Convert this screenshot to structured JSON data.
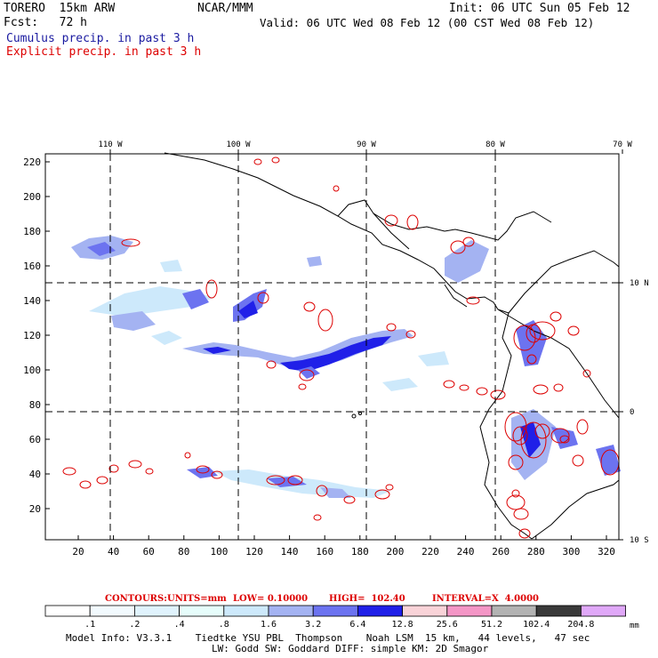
{
  "header": {
    "model": "TORERO  15km ARW",
    "org": "NCAR/MMM",
    "init": "Init: 06 UTC Sun 05 Feb 12",
    "fcst": "Fcst:   72 h",
    "valid": "Valid: 06 UTC Wed 08 Feb 12 (00 CST Wed 08 Feb 12)",
    "line_cumulus": "Cumulus precip. in past 3 h",
    "line_explicit": "Explicit precip. in past 3 h"
  },
  "colors": {
    "cumulus_line": "#1a1aa0",
    "explicit_line": "#dd0000",
    "contour": "#dd0000",
    "land": "#000000"
  },
  "map": {
    "top_lon_labels": [
      "110 W",
      "100 W",
      "90 W",
      "80 W",
      "70 W"
    ],
    "right_lat_labels": [
      "10 N",
      "0",
      "10 S"
    ],
    "y_ticks": [
      "220",
      "200",
      "180",
      "160",
      "140",
      "120",
      "100",
      "80",
      "60",
      "40",
      "20"
    ],
    "x_ticks": [
      "20",
      "40",
      "60",
      "80",
      "100",
      "120",
      "140",
      "160",
      "180",
      "200",
      "220",
      "240",
      "260",
      "280",
      "300",
      "320"
    ]
  },
  "contours": {
    "label": "CONTOURS:",
    "units": "UNITS=mm",
    "low": "LOW= 0.10000",
    "high": "HIGH=  102.40",
    "interval": "INTERVAL=X  4.0000"
  },
  "colorbar": {
    "labels": [
      ".1",
      ".2",
      ".4",
      ".8",
      "1.6",
      "3.2",
      "6.4",
      "12.8",
      "25.6",
      "51.2",
      "102.4",
      "204.8"
    ],
    "unit": "mm",
    "colors": [
      "#ffffff",
      "#f2fafe",
      "#e0f3fd",
      "#e6fdfb",
      "#cde9fb",
      "#a4b3f2",
      "#6c73f0",
      "#2020e8",
      "#f9d3d8",
      "#f496c6",
      "#b3b3b3",
      "#3a3a3a",
      "#e0a8f8"
    ]
  },
  "footer": {
    "line1": "Model Info: V3.3.1    Tiedtke YSU PBL  Thompson    Noah LSM  15 km,   44 levels,   47 sec",
    "line2": "LW: Godd SW: Goddard DIFF: simple KM: 2D Smagor"
  }
}
